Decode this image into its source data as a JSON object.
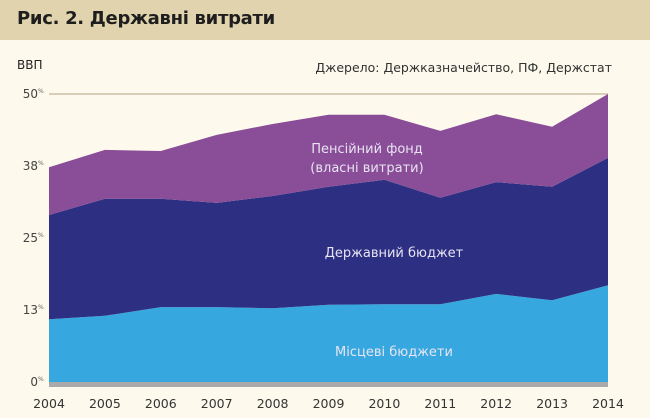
{
  "header": {
    "title": "Рис. 2. Державні витрати",
    "source": "Джерело: Держказначейство, ПФ, Держстат"
  },
  "chart_data": {
    "type": "area",
    "stacked": true,
    "title": "Рис. 2. Державні витрати",
    "ylabel": "ВВП",
    "ylim": [
      0,
      50
    ],
    "yticks": [
      {
        "value": 0,
        "label": "0",
        "suffix": "%"
      },
      {
        "value": 12.5,
        "label": "13",
        "suffix": "%"
      },
      {
        "value": 25,
        "label": "25",
        "suffix": "%"
      },
      {
        "value": 37.5,
        "label": "38",
        "suffix": "%"
      },
      {
        "value": 50,
        "label": "50",
        "suffix": "%"
      }
    ],
    "categories": [
      "2004",
      "2005",
      "2006",
      "2007",
      "2008",
      "2009",
      "2010",
      "2011",
      "2012",
      "2013",
      "2014"
    ],
    "series": [
      {
        "name": "Місцеві бюджети",
        "label_lines": [
          "Місцеві бюджети"
        ],
        "color": "#36a8df",
        "values": [
          10.9,
          11.5,
          13.0,
          13.0,
          12.8,
          13.4,
          13.5,
          13.5,
          15.3,
          14.2,
          16.8
        ]
      },
      {
        "name": "Державний бюджет",
        "label_lines": [
          "Державний бюджет"
        ],
        "color": "#2c2f82",
        "values": [
          18.1,
          20.3,
          18.8,
          18.1,
          19.5,
          20.5,
          21.6,
          18.5,
          19.4,
          19.7,
          22.1
        ]
      },
      {
        "name": "Пенсійний фонд (власні витрати)",
        "label_lines": [
          "Пенсійний фонд",
          "(власні витрати)"
        ],
        "color": "#8a4d98",
        "values": [
          8.3,
          8.5,
          8.3,
          11.8,
          12.5,
          12.5,
          11.3,
          11.6,
          11.8,
          10.4,
          11.1
        ]
      }
    ],
    "grid": false,
    "baseline_color": "#aaaaaa",
    "topline_color": "#d9cdb8"
  }
}
